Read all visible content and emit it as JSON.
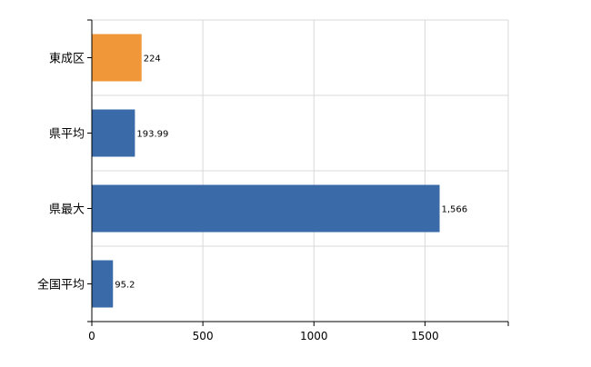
{
  "chart_data": {
    "type": "bar",
    "orientation": "horizontal",
    "categories": [
      "東成区",
      "県平均",
      "県最大",
      "全国平均"
    ],
    "values": [
      224,
      193.99,
      1566,
      95.2
    ],
    "data_labels": [
      "224",
      "193.99",
      "1,566",
      "95.2"
    ],
    "bar_colors": [
      "#f0973a",
      "#3a6aa7",
      "#3a6aa7",
      "#3a6aa7"
    ],
    "x_ticks": [
      0,
      500,
      1000,
      1500
    ],
    "x_tick_labels": [
      "0",
      "500",
      "1000",
      "1500"
    ],
    "xlim": [
      0,
      1875
    ],
    "grid": true,
    "title": "",
    "xlabel": "",
    "ylabel": ""
  }
}
